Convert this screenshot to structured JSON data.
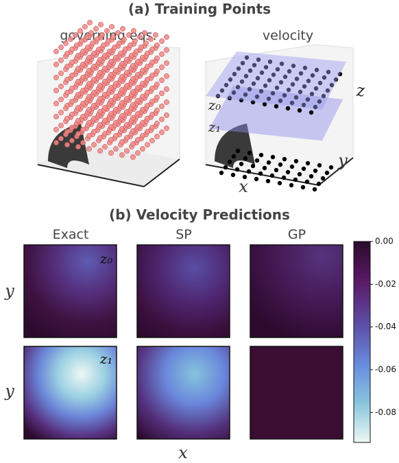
{
  "figure": {
    "panel_a": {
      "title": "(a) Training Points",
      "left_label": "governing eqs.",
      "right_label": "velocity",
      "axis_labels": {
        "x": "x",
        "y": "y",
        "z": "z"
      },
      "plane_labels": [
        "z₀",
        "z₁"
      ]
    },
    "panel_b": {
      "title": "(b) Velocity Predictions",
      "columns": [
        "Exact",
        "SP",
        "GP"
      ],
      "row_labels": [
        "y",
        "y"
      ],
      "row_tags": [
        "z₀",
        "z₁"
      ],
      "x_label": "x",
      "colorbar": {
        "ylim": [
          -0.094,
          0
        ],
        "yticks": [
          {
            "value": 0,
            "label": "0.00"
          },
          -0.02,
          -0.04,
          -0.06,
          -0.08
        ]
      }
    }
  }
}
